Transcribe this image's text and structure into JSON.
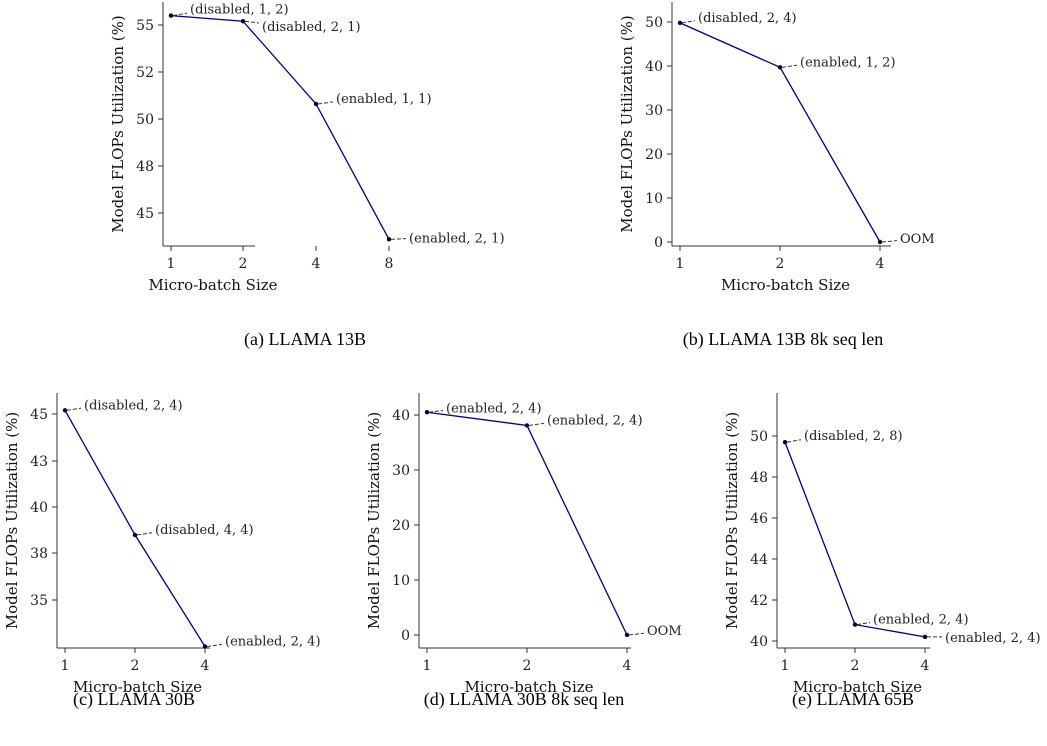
{
  "chart_data": [
    {
      "type": "line",
      "caption": "(a) LLAMA 13B",
      "xlabel": "Micro-batch Size",
      "ylabel": "Model FLOPs Utilization (%)",
      "categories": [
        "1",
        "2",
        "4",
        "8"
      ],
      "values": [
        55.5,
        55.2,
        50.8,
        43.6
      ],
      "annotations": [
        "(disabled, 1, 2)",
        "(disabled, 2, 1)",
        "(enabled, 1, 1)",
        "(enabled, 2, 1)"
      ],
      "yticks": [
        "45",
        "48",
        "50",
        "52",
        "55"
      ],
      "color": "#00008b"
    },
    {
      "type": "line",
      "caption": "(b) LLAMA 13B 8k seq len",
      "xlabel": "Micro-batch Size",
      "ylabel": "Model FLOPs Utilization (%)",
      "categories": [
        "1",
        "2",
        "4"
      ],
      "values": [
        49.8,
        39.7,
        0
      ],
      "annotations": [
        "(disabled, 2, 4)",
        "(enabled, 1, 2)",
        "OOM"
      ],
      "yticks": [
        "0",
        "10",
        "20",
        "30",
        "40",
        "50"
      ],
      "color": "#00008b"
    },
    {
      "type": "line",
      "caption": "(c) LLAMA 30B",
      "xlabel": "Micro-batch Size",
      "ylabel": "Model FLOPs Utilization (%)",
      "categories": [
        "1",
        "2",
        "4"
      ],
      "values": [
        45.2,
        38.5,
        32.5
      ],
      "annotations": [
        "(disabled, 2, 4)",
        "(disabled, 4, 4)",
        "(enabled, 2, 4)"
      ],
      "yticks": [
        "35",
        "38",
        "40",
        "43",
        "45"
      ],
      "color": "#00008b"
    },
    {
      "type": "line",
      "caption": "(d) LLAMA 30B 8k seq len",
      "xlabel": "Micro-batch Size",
      "ylabel": "Model FLOPs Utilization (%)",
      "categories": [
        "1",
        "2",
        "4"
      ],
      "values": [
        40.5,
        38.1,
        0
      ],
      "annotations": [
        "(enabled, 2, 4)",
        "(enabled, 2, 4)",
        "OOM"
      ],
      "yticks": [
        "0",
        "10",
        "20",
        "30",
        "40"
      ],
      "color": "#00008b"
    },
    {
      "type": "line",
      "caption": "(e) LLAMA 65B",
      "xlabel": "Micro-batch Size",
      "ylabel": "Model FLOPs Utilization (%)",
      "categories": [
        "1",
        "2",
        "4"
      ],
      "values": [
        49.7,
        40.8,
        40.2
      ],
      "annotations": [
        "(disabled, 2, 8)",
        "(enabled, 2, 4)",
        "(enabled, 2, 4)"
      ],
      "yticks": [
        "40",
        "42",
        "44",
        "46",
        "48",
        "50"
      ],
      "color": "#00008b"
    }
  ]
}
